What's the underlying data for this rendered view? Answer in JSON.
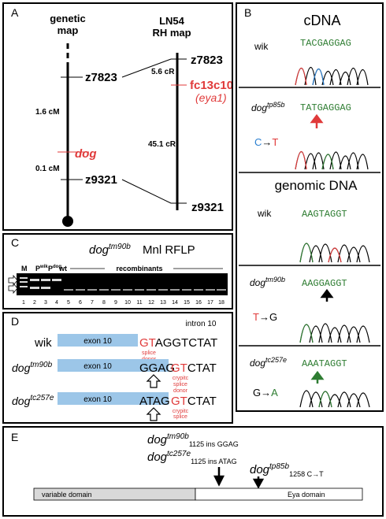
{
  "panels": {
    "a": {
      "label": "A"
    },
    "b": {
      "label": "B"
    },
    "c": {
      "label": "C"
    },
    "d": {
      "label": "D"
    },
    "e": {
      "label": "E"
    }
  },
  "genetic": {
    "title1": "genetic",
    "title2": "map",
    "rh_title1": "LN54",
    "rh_title2": "RH map",
    "z7823": "z7823",
    "z9321": "z9321",
    "dog": "dog",
    "dist_top": "1.6 cM",
    "dist_bottom": "0.1 cM",
    "rh_z7823": "z7823",
    "rh_fc13c10": "fc13c10",
    "rh_eya1": "(eya1)",
    "rh_z9321": "z9321",
    "rh_dist_top": "5.6 cR",
    "rh_dist_bottom": "45.1 cR"
  },
  "seq": {
    "cdna_title": "cDNA",
    "genomic_title": "genomic DNA",
    "wik": "wik",
    "dog": "dog",
    "tp85b": "tp85b",
    "tm90b": "tm90b",
    "tc257e": "tc257e",
    "cdna_wik_seq": "TACGAGGAG",
    "cdna_mut_seq": "TATGAGGAG",
    "cdna_mut_from": "C",
    "cdna_mut_arrow": "→",
    "cdna_mut_to": "T",
    "g_wik_seq": "AAGTAGGT",
    "g_tm90b_seq": "AAGGAGGT",
    "g_tm90b_from": "T",
    "g_tm90b_arrow": "→",
    "g_tm90b_to": "G",
    "g_tc257e_seq": "AAATAGGT",
    "g_tc257e_from": "G",
    "g_tc257e_arrow": "→",
    "g_tc257e_to": "A"
  },
  "gel": {
    "title_dog": "dog",
    "title_sup": "tm90b",
    "title_rest": "Mnl RFLP",
    "lane_m": "M",
    "lane_p0wik": "P",
    "lane_p0wik_sub": "0",
    "lane_p0wik_sup": "wik",
    "lane_p0dog": "P",
    "lane_p0dog_sub": "0",
    "lane_p0dog_sup": "dog",
    "lane_wt": "wt",
    "recombinants": "recombinants",
    "lane_numbers": [
      "1",
      "2",
      "3",
      "4",
      "5",
      "6",
      "7",
      "8",
      "9",
      "10",
      "11",
      "12",
      "13",
      "14",
      "15",
      "16",
      "17",
      "18"
    ]
  },
  "splice": {
    "intron": "intron 10",
    "exon": "exon 10",
    "wik": "wik",
    "dog": "dog",
    "tm90b": "tm90b",
    "tc257e": "tc257e",
    "row1_red": "GT",
    "row1_rest": "AGGTCTAT",
    "row2_box": "GGAG",
    "row2_red": "GT",
    "row2_rest": "CTAT",
    "row3_box": "ATAG",
    "row3_red": "GT",
    "row3_rest": "CTAT",
    "splice_donor_1": "splice",
    "splice_donor_2": "donor",
    "crypitc_1": "crypitc",
    "crypitc_2": "splice",
    "crypitc_3": "donor"
  },
  "domain": {
    "dog": "dog",
    "tm90b": "tm90b",
    "tm90b_sub": "1125 ins GGAG",
    "tc257e": "tc257e",
    "tc257e_sub": "1125 ins ATAG",
    "tp85b": "tp85b",
    "tp85b_sub": "1258 C→T",
    "variable": "variable domain",
    "eya": "Eya domain"
  },
  "colors": {
    "red": "#e03a3a",
    "blue": "#9cc6e8",
    "green": "#2e7d32",
    "black": "#000000"
  }
}
